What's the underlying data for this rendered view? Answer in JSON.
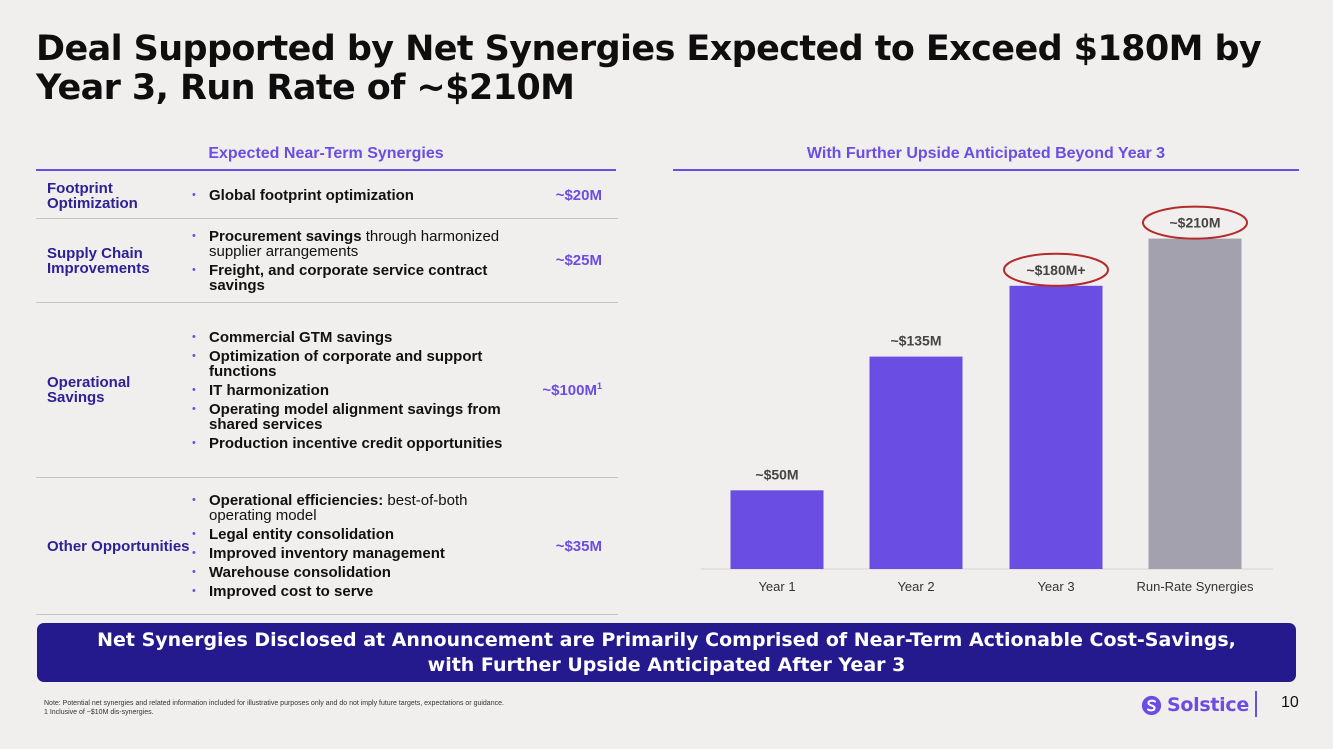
{
  "title": "Deal Supported by Net Synergies Expected to Exceed $180M by Year 3, Run Rate of ~$210M",
  "left_section": {
    "heading": "Expected Near-Term Synergies",
    "rows": [
      {
        "category": "Footprint Optimization",
        "value": "~$20M",
        "items": [
          {
            "bold": "Global footprint optimization",
            "rest": ""
          }
        ]
      },
      {
        "category": "Supply Chain Improvements",
        "value": "~$25M",
        "items": [
          {
            "bold": "Procurement savings",
            "rest": " through harmonized supplier arrangements"
          },
          {
            "bold": "Freight, and corporate service contract savings",
            "rest": ""
          }
        ]
      },
      {
        "category": "Operational Savings",
        "value": "~$100M",
        "value_sup": "1",
        "items": [
          {
            "bold": "Commercial GTM savings",
            "rest": ""
          },
          {
            "bold": "Optimization of corporate and support functions",
            "rest": ""
          },
          {
            "bold": "IT harmonization",
            "rest": ""
          },
          {
            "bold": "Operating model alignment savings from shared services",
            "rest": ""
          },
          {
            "bold": "Production incentive credit opportunities",
            "rest": ""
          }
        ]
      },
      {
        "category": "Other Opportunities",
        "value": "~$35M",
        "items": [
          {
            "bold": "Operational efficiencies:",
            "rest": " best-of-both operating model"
          },
          {
            "bold": "Legal entity consolidation",
            "rest": ""
          },
          {
            "bold": "Improved inventory management",
            "rest": ""
          },
          {
            "bold": "Warehouse consolidation",
            "rest": ""
          },
          {
            "bold": "Improved cost to serve",
            "rest": ""
          }
        ]
      }
    ]
  },
  "right_section": {
    "heading": "With Further Upside Anticipated Beyond Year 3"
  },
  "chart_data": {
    "type": "bar",
    "title": "",
    "xlabel": "",
    "ylabel": "",
    "categories": [
      "Year 1",
      "Year 2",
      "Year 3",
      "Run-Rate Synergies"
    ],
    "values": [
      50,
      135,
      180,
      210
    ],
    "data_labels": [
      "~$50M",
      "~$135M",
      "~$180M+",
      "~$210M"
    ],
    "circled": [
      false,
      false,
      true,
      true
    ],
    "bar_colors": [
      "#6a4de3",
      "#6a4de3",
      "#6a4de3",
      "#a3a1ae"
    ],
    "ylim": [
      0,
      225
    ],
    "grid": false,
    "legend": "none"
  },
  "colors": {
    "accent": "#6a4de3",
    "navy": "#251a8d",
    "circle": "#b52a2a",
    "background": "#f1efed"
  },
  "banner": {
    "line1": "Net Synergies Disclosed at Announcement are Primarily Comprised of Near-Term Actionable Cost-Savings,",
    "line2": "with Further Upside Anticipated After Year 3"
  },
  "footnote": {
    "note": "Note: Potential net synergies and related information included for illustrative purposes only and do not imply future targets, expectations or guidance.",
    "fn1": "1  Inclusive of ~$10M dis-synergies."
  },
  "brand": {
    "name": "Solstice",
    "icon": "solstice-logo-icon"
  },
  "page_number": "10"
}
